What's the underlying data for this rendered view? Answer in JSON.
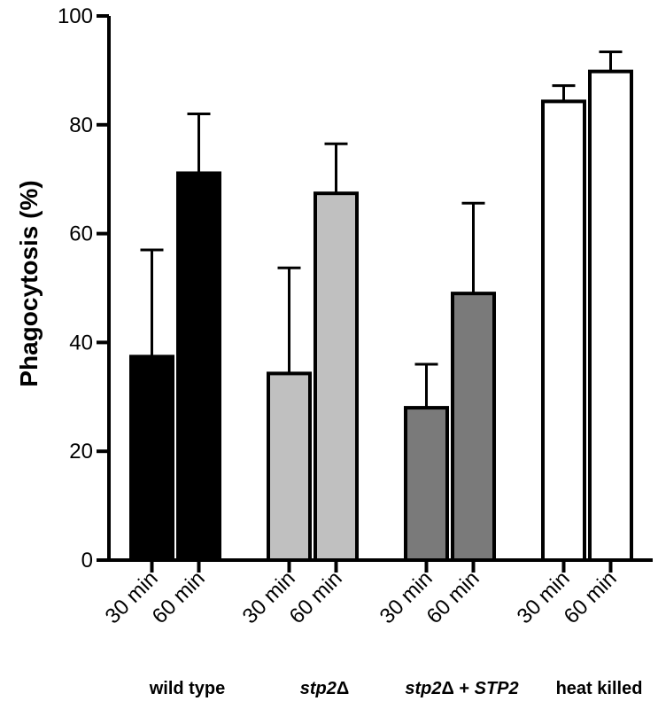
{
  "chart_data": {
    "type": "bar",
    "title": "",
    "xlabel": "",
    "ylabel": "Phagocytosis (%)",
    "ylim": [
      0,
      100
    ],
    "yticks": [
      0,
      20,
      40,
      60,
      80,
      100
    ],
    "grid": false,
    "legend": "none",
    "groups": [
      {
        "label_parts": [
          {
            "text": "wild type",
            "italic": false
          }
        ],
        "color": "#000000",
        "bars": [
          {
            "category": "30 min",
            "value": 37.4,
            "error": 19.6
          },
          {
            "category": "60 min",
            "value": 71.1,
            "error": 10.9
          }
        ]
      },
      {
        "label_parts": [
          {
            "text": "stp2",
            "italic": true
          },
          {
            "text": "Δ",
            "italic": false
          }
        ],
        "color": "#c0c0c0",
        "bars": [
          {
            "category": "30 min",
            "value": 34.3,
            "error": 19.4
          },
          {
            "category": "60 min",
            "value": 67.4,
            "error": 9.1
          }
        ]
      },
      {
        "label_parts": [
          {
            "text": "stp2",
            "italic": true
          },
          {
            "text": "Δ + ",
            "italic": false
          },
          {
            "text": "STP2",
            "italic": true
          }
        ],
        "color": "#7a7a7a",
        "bars": [
          {
            "category": "30 min",
            "value": 28.0,
            "error": 8.0
          },
          {
            "category": "60 min",
            "value": 49.0,
            "error": 16.6
          }
        ]
      },
      {
        "label_parts": [
          {
            "text": "heat killed",
            "italic": false
          }
        ],
        "color": "#ffffff",
        "bars": [
          {
            "category": "30 min",
            "value": 84.3,
            "error": 2.9
          },
          {
            "category": "60 min",
            "value": 89.8,
            "error": 3.6
          }
        ]
      }
    ]
  }
}
